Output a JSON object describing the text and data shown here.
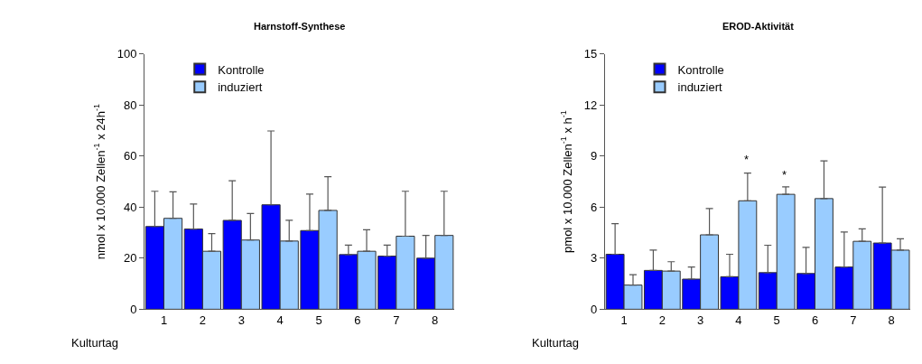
{
  "chart_data": [
    {
      "type": "bar",
      "title": "Harnstoff-Synthese",
      "xlabel": "Kulturtag",
      "ylabel": "nmol x 10.000 Zellen$^{-1}$ x 24h$^{-1}$",
      "categories": [
        "1",
        "2",
        "3",
        "4",
        "5",
        "6",
        "7",
        "8"
      ],
      "ylim": [
        0,
        100
      ],
      "yticks": [
        0,
        20,
        40,
        60,
        80,
        100
      ],
      "legend": "top left",
      "series": [
        {
          "name": "Kontrolle",
          "color": "#0000ff",
          "values": [
            32.4,
            31.4,
            34.8,
            40.9,
            30.8,
            21.4,
            20.8,
            20.0
          ],
          "errors": [
            [
              32.4,
              46.2
            ],
            [
              31.4,
              41.2
            ],
            [
              34.8,
              50.3
            ],
            [
              40.9,
              69.8
            ],
            [
              30.8,
              45.1
            ],
            [
              21.4,
              25.1
            ],
            [
              20.8,
              25.1
            ],
            [
              20.0,
              28.9
            ]
          ]
        },
        {
          "name": "induziert",
          "color": "#99ccff",
          "values": [
            35.6,
            22.7,
            27.1,
            26.7,
            38.7,
            22.7,
            28.6,
            28.9
          ],
          "errors": [
            [
              35.6,
              46.0
            ],
            [
              22.7,
              29.6
            ],
            [
              27.1,
              37.5
            ],
            [
              26.7,
              34.8
            ],
            [
              38.7,
              51.9
            ],
            [
              22.7,
              31.1
            ],
            [
              28.6,
              46.2
            ],
            [
              28.9,
              46.2
            ]
          ]
        }
      ]
    },
    {
      "type": "bar",
      "title": "EROD-Aktivität",
      "xlabel": "Kulturtag",
      "ylabel": "pmol x 10.000 Zellen$^{-1}$ x h$^{-1}$",
      "categories": [
        "1",
        "2",
        "3",
        "4",
        "5",
        "6",
        "7",
        "8"
      ],
      "ylim": [
        0,
        15
      ],
      "yticks": [
        0,
        3,
        6,
        9,
        12,
        15
      ],
      "legend": "top left",
      "annotations": [
        "*",
        "*"
      ],
      "series": [
        {
          "name": "Kontrolle",
          "color": "#0000ff",
          "values": [
            3.23,
            2.28,
            1.77,
            1.91,
            2.15,
            2.1,
            2.48,
            3.89
          ],
          "errors": [
            [
              3.23,
              5.03
            ],
            [
              2.28,
              3.47
            ],
            [
              1.77,
              2.48
            ],
            [
              1.91,
              3.23
            ],
            [
              2.15,
              3.76
            ],
            [
              2.1,
              3.63
            ],
            [
              2.48,
              4.54
            ],
            [
              3.89,
              7.18
            ]
          ]
        },
        {
          "name": "induziert",
          "color": "#99ccff",
          "values": [
            1.42,
            2.24,
            4.37,
            6.37,
            6.75,
            6.5,
            3.99,
            3.47
          ],
          "errors": [
            [
              1.42,
              2.03
            ],
            [
              2.24,
              2.79
            ],
            [
              4.37,
              5.91
            ],
            [
              6.37,
              8.0
            ],
            [
              6.75,
              7.19
            ],
            [
              6.5,
              8.71
            ],
            [
              3.99,
              4.72
            ],
            [
              3.47,
              4.14
            ]
          ]
        }
      ]
    }
  ]
}
